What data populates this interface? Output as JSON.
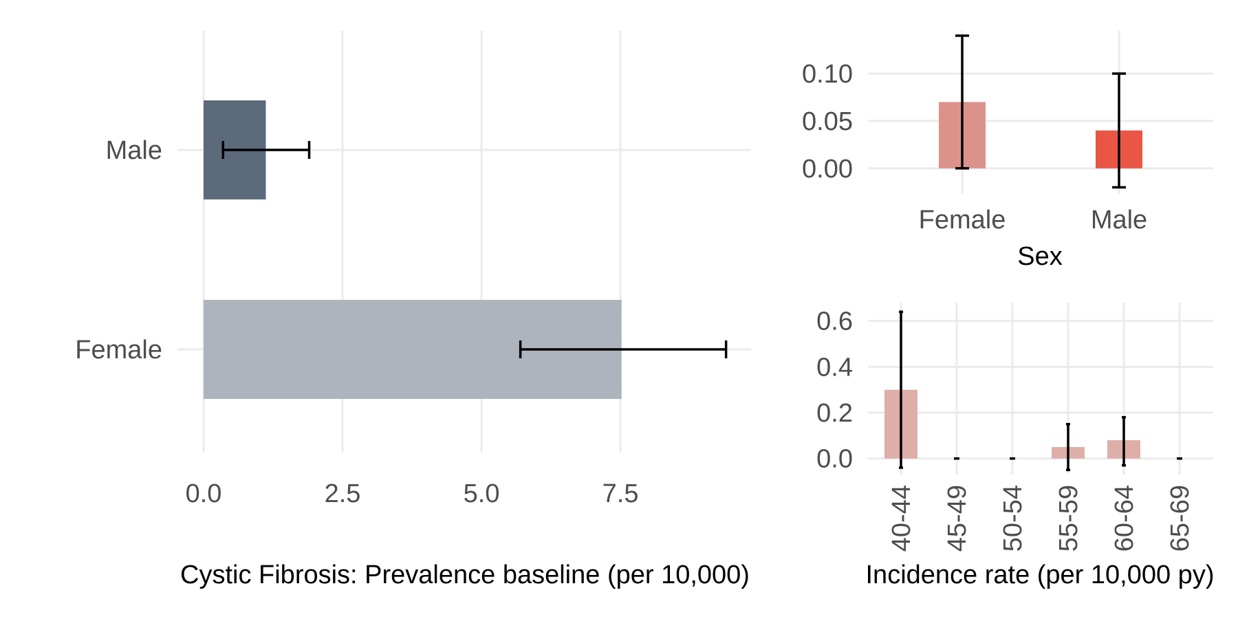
{
  "chart_data": [
    {
      "id": "prevalence",
      "type": "bar",
      "orientation": "horizontal",
      "categories": [
        "Male",
        "Female"
      ],
      "values": [
        1.12,
        7.52
      ],
      "error_low": [
        0.35,
        5.7
      ],
      "error_high": [
        1.9,
        9.4
      ],
      "colors": [
        "#5b6b7b",
        "#adb4bd"
      ],
      "xlabel": "Cystic Fibrosis: Prevalence baseline (per 10,000)",
      "ylabel": "",
      "xticks": [
        "0.0",
        "2.5",
        "5.0",
        "7.5"
      ],
      "xtick_values": [
        0,
        2.5,
        5,
        7.5
      ],
      "xlim": [
        0,
        9.85
      ],
      "grid": true
    },
    {
      "id": "incidence-sex",
      "type": "bar",
      "categories": [
        "Female",
        "Male"
      ],
      "values": [
        0.07,
        0.04
      ],
      "error_low": [
        0.0,
        -0.02
      ],
      "error_high": [
        0.14,
        0.1
      ],
      "colors": [
        "#db928a",
        "#ea5646"
      ],
      "xlabel": "Sex",
      "ylabel": "",
      "yticks": [
        "0.00",
        "0.05",
        "0.10"
      ],
      "ytick_values": [
        0,
        0.05,
        0.1
      ],
      "ylim": [
        -0.027,
        0.145
      ],
      "grid": true
    },
    {
      "id": "incidence-age",
      "type": "bar",
      "categories": [
        "40-44",
        "45-49",
        "50-54",
        "55-59",
        "60-64",
        "65-69"
      ],
      "values": [
        0.3,
        0.0,
        0.0,
        0.05,
        0.08,
        0.0
      ],
      "error_low": [
        -0.04,
        0.0,
        0.0,
        -0.05,
        -0.03,
        0.0
      ],
      "error_high": [
        0.64,
        0.0,
        0.0,
        0.15,
        0.18,
        0.0
      ],
      "colors": [
        "#deaea9"
      ],
      "xlabel": "Incidence rate (per 10,000 py)",
      "ylabel": "",
      "yticks": [
        "0.0",
        "0.2",
        "0.4",
        "0.6"
      ],
      "ytick_values": [
        0,
        0.2,
        0.4,
        0.6
      ],
      "ylim": [
        -0.07,
        0.68
      ],
      "grid": true
    }
  ]
}
